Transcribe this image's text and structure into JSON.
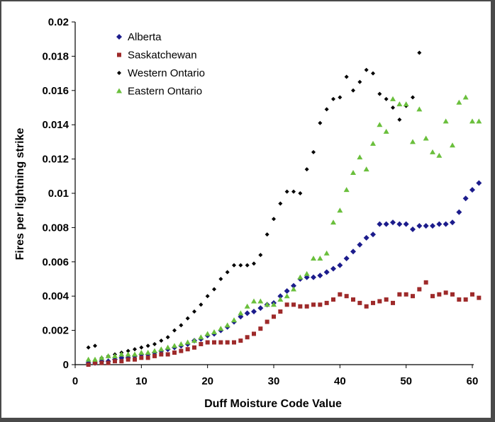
{
  "chart_data": {
    "type": "scatter",
    "title": "",
    "xlabel": "Duff Moisture Code Value",
    "ylabel": "Fires per lightning strike",
    "xlim": [
      0,
      60
    ],
    "ylim": [
      0,
      0.02
    ],
    "x_ticks": [
      "0",
      "10",
      "20",
      "30",
      "40",
      "50",
      "60"
    ],
    "y_ticks": [
      "0",
      "0.002",
      "0.004",
      "0.006",
      "0.008",
      "0.01",
      "0.012",
      "0.014",
      "0.016",
      "0.018",
      "0.02"
    ],
    "grid": false,
    "legend_position": "top-left",
    "series": [
      {
        "name": "Alberta",
        "marker": "diamond",
        "color": "#1c1c8c",
        "points": [
          [
            2,
            0.0001
          ],
          [
            3,
            0.0001
          ],
          [
            4,
            0.0002
          ],
          [
            5,
            0.0002
          ],
          [
            6,
            0.0003
          ],
          [
            7,
            0.0004
          ],
          [
            8,
            0.0004
          ],
          [
            9,
            0.0005
          ],
          [
            10,
            0.0006
          ],
          [
            11,
            0.0006
          ],
          [
            12,
            0.0007
          ],
          [
            13,
            0.0008
          ],
          [
            14,
            0.0009
          ],
          [
            15,
            0.001
          ],
          [
            16,
            0.0011
          ],
          [
            17,
            0.0012
          ],
          [
            18,
            0.0014
          ],
          [
            19,
            0.0015
          ],
          [
            20,
            0.0017
          ],
          [
            21,
            0.0018
          ],
          [
            22,
            0.002
          ],
          [
            23,
            0.0022
          ],
          [
            24,
            0.0025
          ],
          [
            25,
            0.0028
          ],
          [
            26,
            0.003
          ],
          [
            27,
            0.0031
          ],
          [
            28,
            0.0033
          ],
          [
            29,
            0.0035
          ],
          [
            30,
            0.0036
          ],
          [
            31,
            0.004
          ],
          [
            32,
            0.0043
          ],
          [
            33,
            0.0046
          ],
          [
            34,
            0.005
          ],
          [
            35,
            0.0051
          ],
          [
            36,
            0.0051
          ],
          [
            37,
            0.0052
          ],
          [
            38,
            0.0054
          ],
          [
            39,
            0.0056
          ],
          [
            40,
            0.0058
          ],
          [
            41,
            0.0062
          ],
          [
            42,
            0.0066
          ],
          [
            43,
            0.007
          ],
          [
            44,
            0.0074
          ],
          [
            45,
            0.0076
          ],
          [
            46,
            0.0082
          ],
          [
            47,
            0.0082
          ],
          [
            48,
            0.0083
          ],
          [
            49,
            0.0082
          ],
          [
            50,
            0.0082
          ],
          [
            51,
            0.0079
          ],
          [
            52,
            0.0081
          ],
          [
            53,
            0.0081
          ],
          [
            54,
            0.0081
          ],
          [
            55,
            0.0082
          ],
          [
            56,
            0.0082
          ],
          [
            57,
            0.0083
          ],
          [
            58,
            0.0089
          ],
          [
            59,
            0.0097
          ],
          [
            60,
            0.0102
          ],
          [
            61,
            0.0106
          ]
        ]
      },
      {
        "name": "Saskatchewan",
        "marker": "square",
        "color": "#9e2a2a",
        "points": [
          [
            2,
            0.0
          ],
          [
            3,
            0.0001
          ],
          [
            4,
            0.0001
          ],
          [
            5,
            0.0001
          ],
          [
            6,
            0.0002
          ],
          [
            7,
            0.0002
          ],
          [
            8,
            0.0003
          ],
          [
            9,
            0.0003
          ],
          [
            10,
            0.0004
          ],
          [
            11,
            0.0004
          ],
          [
            12,
            0.0005
          ],
          [
            13,
            0.0006
          ],
          [
            14,
            0.0006
          ],
          [
            15,
            0.0007
          ],
          [
            16,
            0.0008
          ],
          [
            17,
            0.0009
          ],
          [
            18,
            0.001
          ],
          [
            19,
            0.0012
          ],
          [
            20,
            0.0013
          ],
          [
            21,
            0.0013
          ],
          [
            22,
            0.0013
          ],
          [
            23,
            0.0013
          ],
          [
            24,
            0.0013
          ],
          [
            25,
            0.0014
          ],
          [
            26,
            0.0016
          ],
          [
            27,
            0.0018
          ],
          [
            28,
            0.0021
          ],
          [
            29,
            0.0025
          ],
          [
            30,
            0.0028
          ],
          [
            31,
            0.0031
          ],
          [
            32,
            0.0035
          ],
          [
            33,
            0.0035
          ],
          [
            34,
            0.0034
          ],
          [
            35,
            0.0034
          ],
          [
            36,
            0.0035
          ],
          [
            37,
            0.0035
          ],
          [
            38,
            0.0036
          ],
          [
            39,
            0.0038
          ],
          [
            40,
            0.0041
          ],
          [
            41,
            0.004
          ],
          [
            42,
            0.0038
          ],
          [
            43,
            0.0036
          ],
          [
            44,
            0.0034
          ],
          [
            45,
            0.0036
          ],
          [
            46,
            0.0037
          ],
          [
            47,
            0.0038
          ],
          [
            48,
            0.0036
          ],
          [
            49,
            0.0041
          ],
          [
            50,
            0.0041
          ],
          [
            51,
            0.004
          ],
          [
            52,
            0.0044
          ],
          [
            53,
            0.0048
          ],
          [
            54,
            0.004
          ],
          [
            55,
            0.0041
          ],
          [
            56,
            0.0042
          ],
          [
            57,
            0.0041
          ],
          [
            58,
            0.0038
          ],
          [
            59,
            0.0038
          ],
          [
            60,
            0.0041
          ],
          [
            61,
            0.0039
          ]
        ]
      },
      {
        "name": "Western Ontario",
        "marker": "diamond-small",
        "color": "#000000",
        "points": [
          [
            2,
            0.001
          ],
          [
            3,
            0.0011
          ],
          [
            4,
            0.0004
          ],
          [
            5,
            0.0005
          ],
          [
            6,
            0.0006
          ],
          [
            7,
            0.0007
          ],
          [
            8,
            0.0008
          ],
          [
            9,
            0.0009
          ],
          [
            10,
            0.001
          ],
          [
            11,
            0.0011
          ],
          [
            12,
            0.0012
          ],
          [
            13,
            0.0014
          ],
          [
            14,
            0.0016
          ],
          [
            15,
            0.002
          ],
          [
            16,
            0.0023
          ],
          [
            17,
            0.0027
          ],
          [
            18,
            0.0031
          ],
          [
            19,
            0.0035
          ],
          [
            20,
            0.004
          ],
          [
            21,
            0.0044
          ],
          [
            22,
            0.005
          ],
          [
            23,
            0.0054
          ],
          [
            24,
            0.0058
          ],
          [
            25,
            0.0058
          ],
          [
            26,
            0.0058
          ],
          [
            27,
            0.0059
          ],
          [
            28,
            0.0064
          ],
          [
            29,
            0.0076
          ],
          [
            30,
            0.0085
          ],
          [
            31,
            0.0094
          ],
          [
            32,
            0.0101
          ],
          [
            33,
            0.0101
          ],
          [
            34,
            0.01
          ],
          [
            35,
            0.0114
          ],
          [
            36,
            0.0124
          ],
          [
            37,
            0.0141
          ],
          [
            38,
            0.0149
          ],
          [
            39,
            0.0155
          ],
          [
            40,
            0.0156
          ],
          [
            41,
            0.0168
          ],
          [
            42,
            0.016
          ],
          [
            43,
            0.0165
          ],
          [
            44,
            0.0172
          ],
          [
            45,
            0.017
          ],
          [
            46,
            0.0158
          ],
          [
            47,
            0.0155
          ],
          [
            48,
            0.015
          ],
          [
            49,
            0.0143
          ],
          [
            50,
            0.0151
          ],
          [
            51,
            0.0156
          ],
          [
            52,
            0.0182
          ]
        ]
      },
      {
        "name": "Eastern Ontario",
        "marker": "triangle",
        "color": "#6abf3c",
        "points": [
          [
            2,
            0.0003
          ],
          [
            3,
            0.0003
          ],
          [
            4,
            0.0004
          ],
          [
            5,
            0.0005
          ],
          [
            6,
            0.0005
          ],
          [
            7,
            0.0006
          ],
          [
            8,
            0.0006
          ],
          [
            9,
            0.0006
          ],
          [
            10,
            0.0007
          ],
          [
            11,
            0.0007
          ],
          [
            12,
            0.0008
          ],
          [
            13,
            0.0009
          ],
          [
            14,
            0.001
          ],
          [
            15,
            0.0011
          ],
          [
            16,
            0.0012
          ],
          [
            17,
            0.0013
          ],
          [
            18,
            0.0014
          ],
          [
            19,
            0.0016
          ],
          [
            20,
            0.0018
          ],
          [
            21,
            0.0019
          ],
          [
            22,
            0.0021
          ],
          [
            23,
            0.0023
          ],
          [
            24,
            0.0026
          ],
          [
            25,
            0.003
          ],
          [
            26,
            0.0034
          ],
          [
            27,
            0.0037
          ],
          [
            28,
            0.0037
          ],
          [
            29,
            0.0035
          ],
          [
            30,
            0.0035
          ],
          [
            31,
            0.0038
          ],
          [
            32,
            0.004
          ],
          [
            33,
            0.0044
          ],
          [
            34,
            0.0051
          ],
          [
            35,
            0.0053
          ],
          [
            36,
            0.0062
          ],
          [
            37,
            0.0062
          ],
          [
            38,
            0.0065
          ],
          [
            39,
            0.0083
          ],
          [
            40,
            0.009
          ],
          [
            41,
            0.0102
          ],
          [
            42,
            0.0112
          ],
          [
            43,
            0.0121
          ],
          [
            44,
            0.0114
          ],
          [
            45,
            0.0129
          ],
          [
            46,
            0.014
          ],
          [
            47,
            0.0136
          ],
          [
            48,
            0.0155
          ],
          [
            49,
            0.0152
          ],
          [
            50,
            0.0152
          ],
          [
            51,
            0.013
          ],
          [
            52,
            0.0149
          ],
          [
            53,
            0.0132
          ],
          [
            54,
            0.0124
          ],
          [
            55,
            0.0122
          ],
          [
            56,
            0.0142
          ],
          [
            57,
            0.0128
          ],
          [
            58,
            0.0153
          ],
          [
            59,
            0.0156
          ],
          [
            60,
            0.0142
          ],
          [
            61,
            0.0142
          ]
        ]
      }
    ]
  }
}
